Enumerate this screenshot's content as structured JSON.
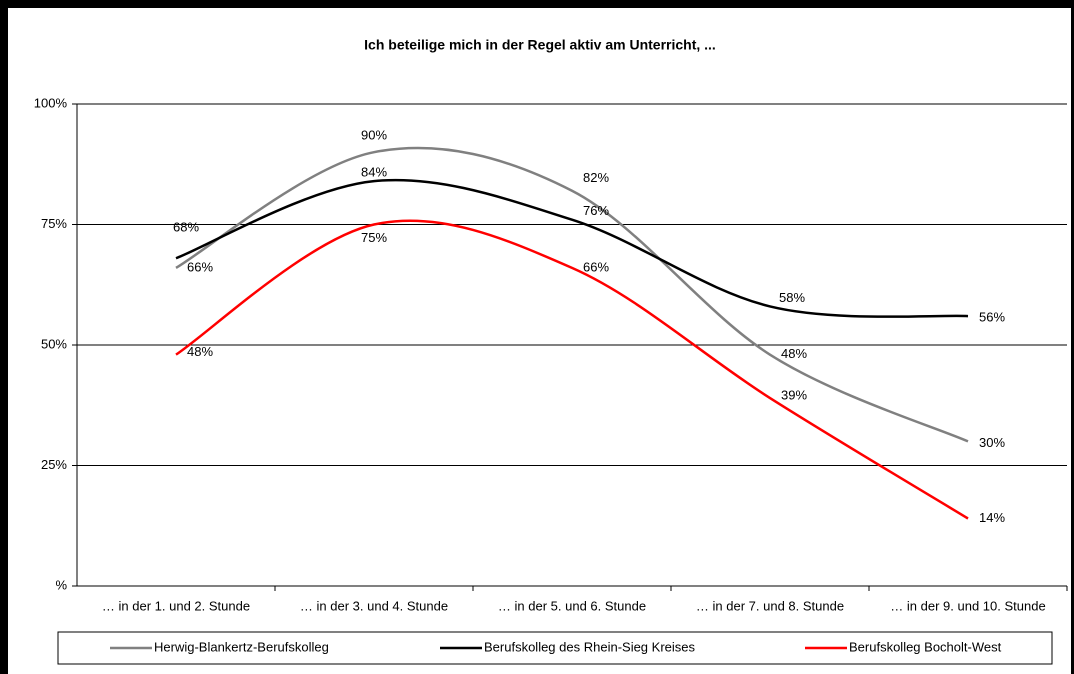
{
  "chart_data": {
    "type": "line",
    "title": "Ich beteilige mich in der Regel aktiv am Unterricht, ...",
    "categories": [
      "… in der 1. und 2. Stunde",
      "… in der 3. und 4. Stunde",
      "… in der 5. und 6. Stunde",
      "… in der 7. und 8. Stunde",
      "… in der 9. und 10. Stunde"
    ],
    "series": [
      {
        "name": "Herwig-Blankertz-Berufskolleg",
        "color": "#808080",
        "values": [
          66,
          90,
          82,
          48,
          30
        ],
        "value_labels": [
          "66%",
          "90%",
          "82%",
          "48%",
          "30%"
        ]
      },
      {
        "name": "Berufskolleg des Rhein-Sieg Kreises",
        "color": "#000000",
        "values": [
          68,
          84,
          76,
          58,
          56
        ],
        "value_labels": [
          "68%",
          "84%",
          "76%",
          "58%",
          "56%"
        ]
      },
      {
        "name": "Berufskolleg Bocholt-West",
        "color": "#ff0000",
        "values": [
          48,
          75,
          66,
          39,
          14
        ],
        "value_labels": [
          "48%",
          "75%",
          "66%",
          "39%",
          "14%"
        ]
      }
    ],
    "ylim": [
      0,
      100
    ],
    "yticks": [
      {
        "value": 0,
        "label": "%"
      },
      {
        "value": 25,
        "label": "25%"
      },
      {
        "value": 50,
        "label": "50%"
      },
      {
        "value": 75,
        "label": "75%"
      },
      {
        "value": 100,
        "label": "100%"
      }
    ],
    "grid": true,
    "smooth": true,
    "legend": "bottom"
  }
}
